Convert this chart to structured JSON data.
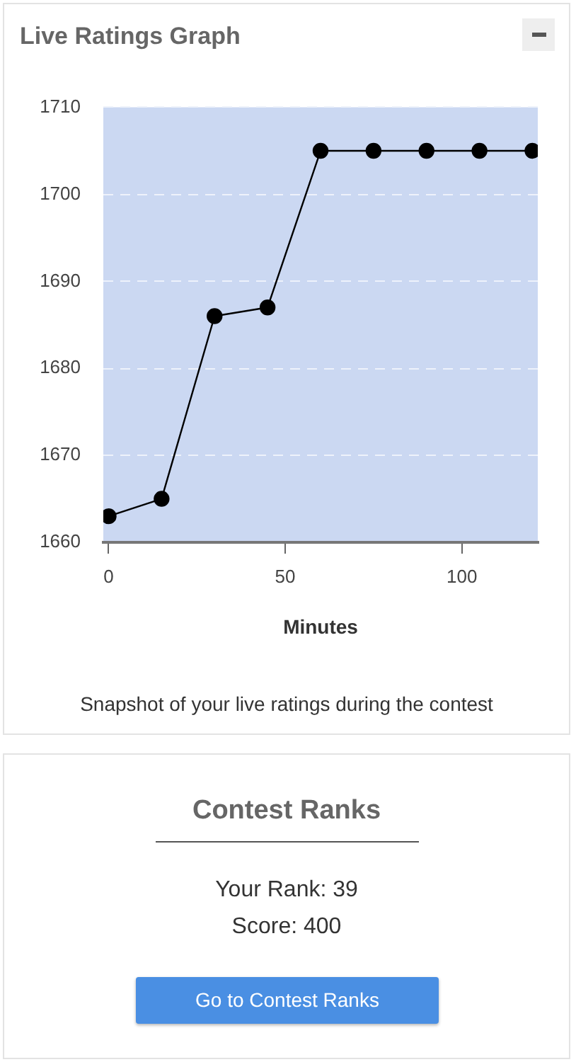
{
  "chart_data": [
    {
      "type": "line",
      "title": "Live Ratings Graph",
      "xlabel": "Minutes",
      "x": [
        0,
        15,
        30,
        45,
        60,
        75,
        90,
        105,
        120
      ],
      "values": [
        1663,
        1665,
        1686,
        1687,
        1705,
        1705,
        1705,
        1705,
        1705
      ],
      "color": "#000000",
      "xlim": [
        -1.5,
        121.5
      ],
      "xticks": [
        0,
        50,
        100
      ],
      "ylim": [
        1660,
        1710
      ],
      "yticks": [
        1660,
        1670,
        1680,
        1690,
        1700,
        1710
      ],
      "grid": "y",
      "marker": "circle",
      "annotations": [
        "Snapshot of your live ratings during the contest"
      ]
    },
    {
      "type": "other",
      "title": "Contest Ranks",
      "annotations": [
        "Your Rank: 39",
        "Score: 400",
        "Go to Contest Ranks"
      ]
    }
  ]
}
